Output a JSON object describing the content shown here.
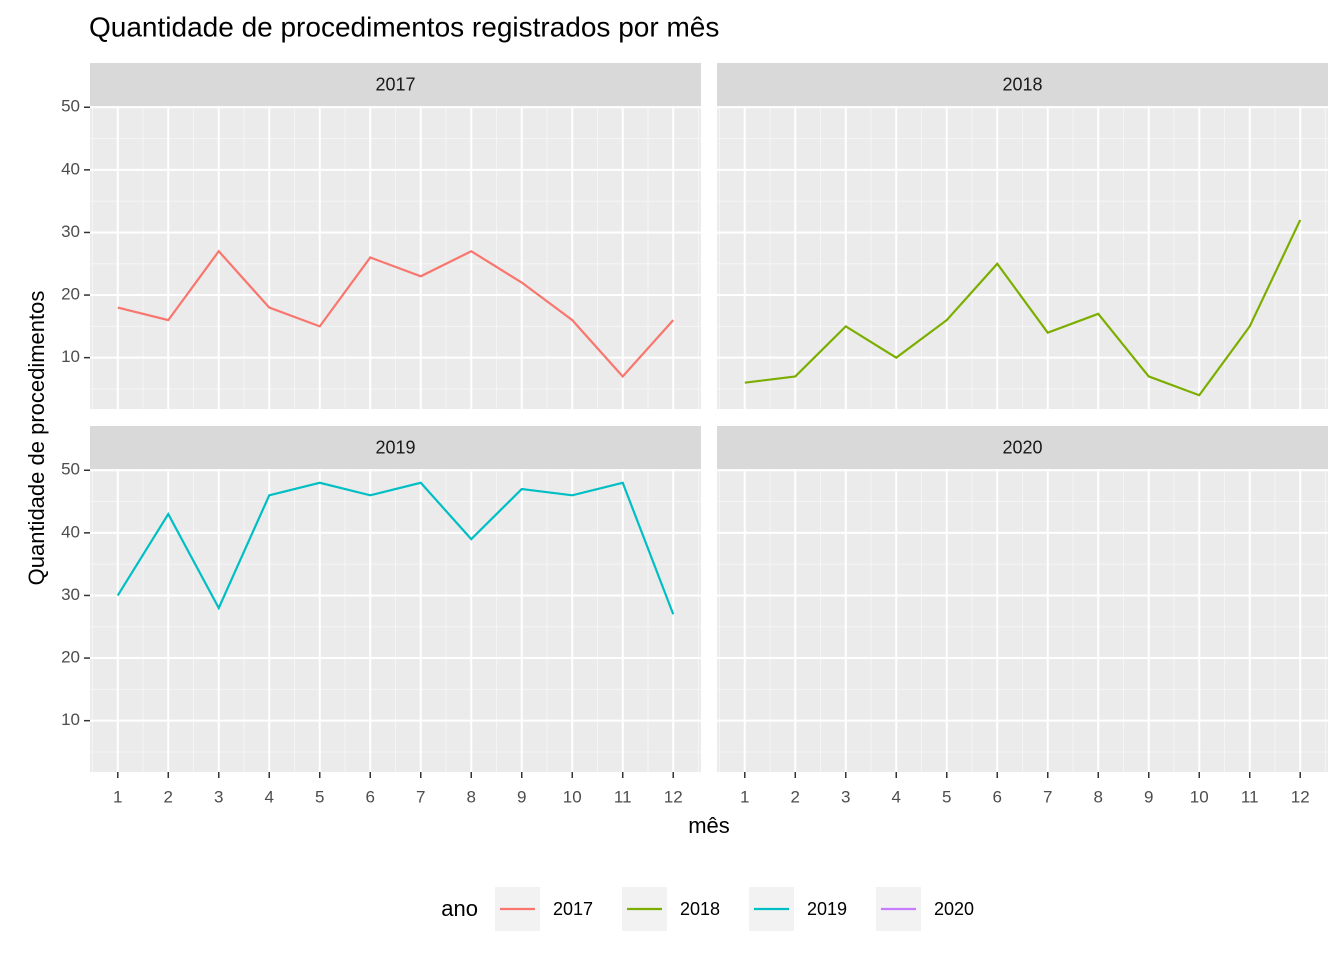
{
  "chart_data": {
    "type": "line",
    "title": "Quantidade de procedimentos registrados por mês",
    "xlabel": "mês",
    "ylabel": "Quantidade de procedimentos",
    "legend_title": "ano",
    "legend_position": "bottom",
    "grid": true,
    "facet": "series",
    "x": [
      1,
      2,
      3,
      4,
      5,
      6,
      7,
      8,
      9,
      10,
      11,
      12
    ],
    "xlim": [
      0.45,
      12.55
    ],
    "xticks": [
      1,
      2,
      3,
      4,
      5,
      6,
      7,
      8,
      9,
      10,
      11,
      12
    ],
    "ylim": [
      1.8,
      50.2
    ],
    "yticks": [
      10,
      20,
      30,
      40,
      50
    ],
    "series": [
      {
        "name": "2017",
        "color": "#F8766D",
        "values": [
          18,
          16,
          27,
          18,
          15,
          26,
          23,
          27,
          22,
          16,
          7,
          16
        ]
      },
      {
        "name": "2018",
        "color": "#7CAE00",
        "values": [
          6,
          7,
          15,
          10,
          16,
          25,
          14,
          17,
          7,
          4,
          15,
          32
        ]
      },
      {
        "name": "2019",
        "color": "#00BFC4",
        "values": [
          30,
          43,
          28,
          46,
          48,
          46,
          48,
          39,
          47,
          46,
          48,
          27
        ]
      },
      {
        "name": "2020",
        "color": "#C77CFF",
        "values": [
          null,
          null,
          null,
          null,
          null,
          null,
          null,
          null,
          null,
          null,
          null,
          null
        ]
      }
    ]
  }
}
